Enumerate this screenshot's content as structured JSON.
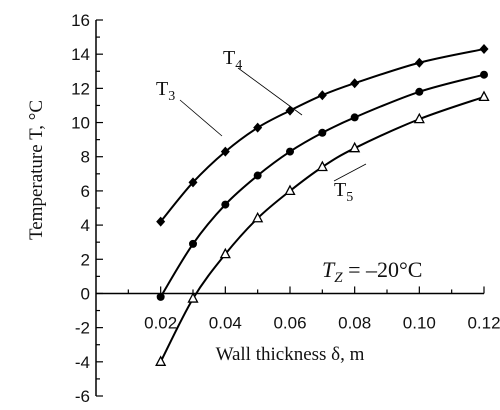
{
  "chart_data": {
    "type": "line",
    "xlabel": "Wall thickness δ, m",
    "ylabel": "Temperature T, °C",
    "xlim": [
      0.0,
      0.12
    ],
    "ylim": [
      -6,
      16
    ],
    "x_ticks": [
      "0.02",
      "0.04",
      "0.06",
      "0.08",
      "0.10",
      "0.12"
    ],
    "x_tick_values": [
      0.02,
      0.04,
      0.06,
      0.08,
      0.1,
      0.12
    ],
    "y_ticks": [
      "-6",
      "-4",
      "-2",
      "0",
      "2",
      "4",
      "6",
      "8",
      "10",
      "12",
      "14",
      "16"
    ],
    "y_tick_values": [
      -6,
      -4,
      -2,
      0,
      2,
      4,
      6,
      8,
      10,
      12,
      14,
      16
    ],
    "grid": false,
    "annotation": "T_Z = –20°C",
    "series": [
      {
        "name": "T3",
        "label_main": "T",
        "label_sub": "3",
        "marker": "circle",
        "x": [
          0.02,
          0.03,
          0.04,
          0.05,
          0.06,
          0.07,
          0.08,
          0.1,
          0.12
        ],
        "y": [
          -0.2,
          2.9,
          5.2,
          6.9,
          8.3,
          9.4,
          10.3,
          11.8,
          12.8
        ]
      },
      {
        "name": "T4",
        "label_main": "T",
        "label_sub": "4",
        "marker": "diamond",
        "x": [
          0.02,
          0.03,
          0.04,
          0.05,
          0.06,
          0.07,
          0.08,
          0.1,
          0.12
        ],
        "y": [
          4.2,
          6.5,
          8.3,
          9.7,
          10.7,
          11.6,
          12.3,
          13.5,
          14.3
        ]
      },
      {
        "name": "T5",
        "label_main": "T",
        "label_sub": "5",
        "marker": "triangle",
        "x": [
          0.02,
          0.03,
          0.04,
          0.05,
          0.06,
          0.07,
          0.08,
          0.1,
          0.12
        ],
        "y": [
          -4.0,
          -0.3,
          2.3,
          4.4,
          6.0,
          7.4,
          8.5,
          10.2,
          11.5
        ]
      }
    ]
  }
}
